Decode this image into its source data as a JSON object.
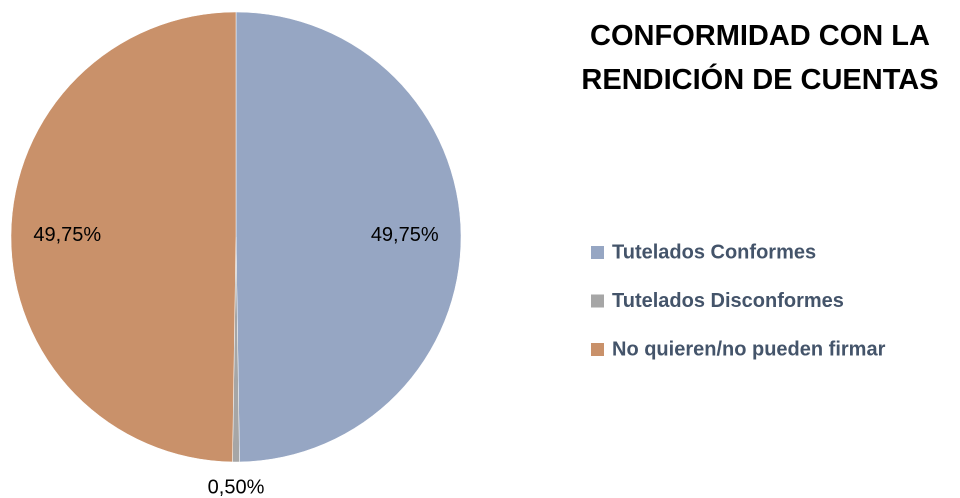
{
  "chart_data": {
    "type": "pie",
    "title": "CONFORMIDAD CON LA RENDICIÓN DE CUENTAS",
    "categories": [
      "Tutelados Conformes",
      "Tutelados Disconformes",
      "No quieren/no pueden firmar"
    ],
    "values": [
      49.75,
      0.5,
      49.75
    ],
    "value_labels": [
      "49,75%",
      "0,50%",
      "49,75%"
    ],
    "colors": [
      "#96a6c3",
      "#a6a6a6",
      "#c9916a"
    ],
    "legend": "right"
  }
}
